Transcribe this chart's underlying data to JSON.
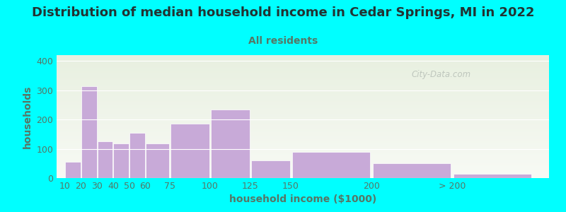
{
  "title": "Distribution of median household income in Cedar Springs, MI in 2022",
  "subtitle": "All residents",
  "xlabel": "household income ($1000)",
  "ylabel": "households",
  "background_color": "#00FFFF",
  "plot_bg_top": "#e8f0e0",
  "plot_bg_bottom": "#f8faf5",
  "bar_color": "#c8aad8",
  "bar_edgecolor": "#ffffff",
  "title_color": "#223333",
  "subtitle_color": "#557766",
  "ylabel_color": "#557766",
  "xlabel_color": "#557766",
  "tick_color": "#557766",
  "title_fontsize": 13,
  "subtitle_fontsize": 10,
  "axis_fontsize": 9,
  "ylim": [
    0,
    420
  ],
  "yticks": [
    0,
    100,
    200,
    300,
    400
  ],
  "bar_labels": [
    "10",
    "20",
    "30",
    "40",
    "50",
    "60",
    "75",
    "100",
    "125",
    "150",
    "200",
    "> 200"
  ],
  "bar_values": [
    55,
    315,
    125,
    118,
    155,
    118,
    185,
    235,
    60,
    90,
    50,
    15
  ],
  "bar_widths": [
    10,
    10,
    10,
    10,
    10,
    15,
    25,
    25,
    25,
    50,
    50,
    50
  ],
  "bar_lefts": [
    10,
    20,
    30,
    40,
    50,
    60,
    75,
    100,
    125,
    150,
    200,
    250
  ],
  "x_min": 5,
  "x_max": 310,
  "watermark": "City-Data.com"
}
